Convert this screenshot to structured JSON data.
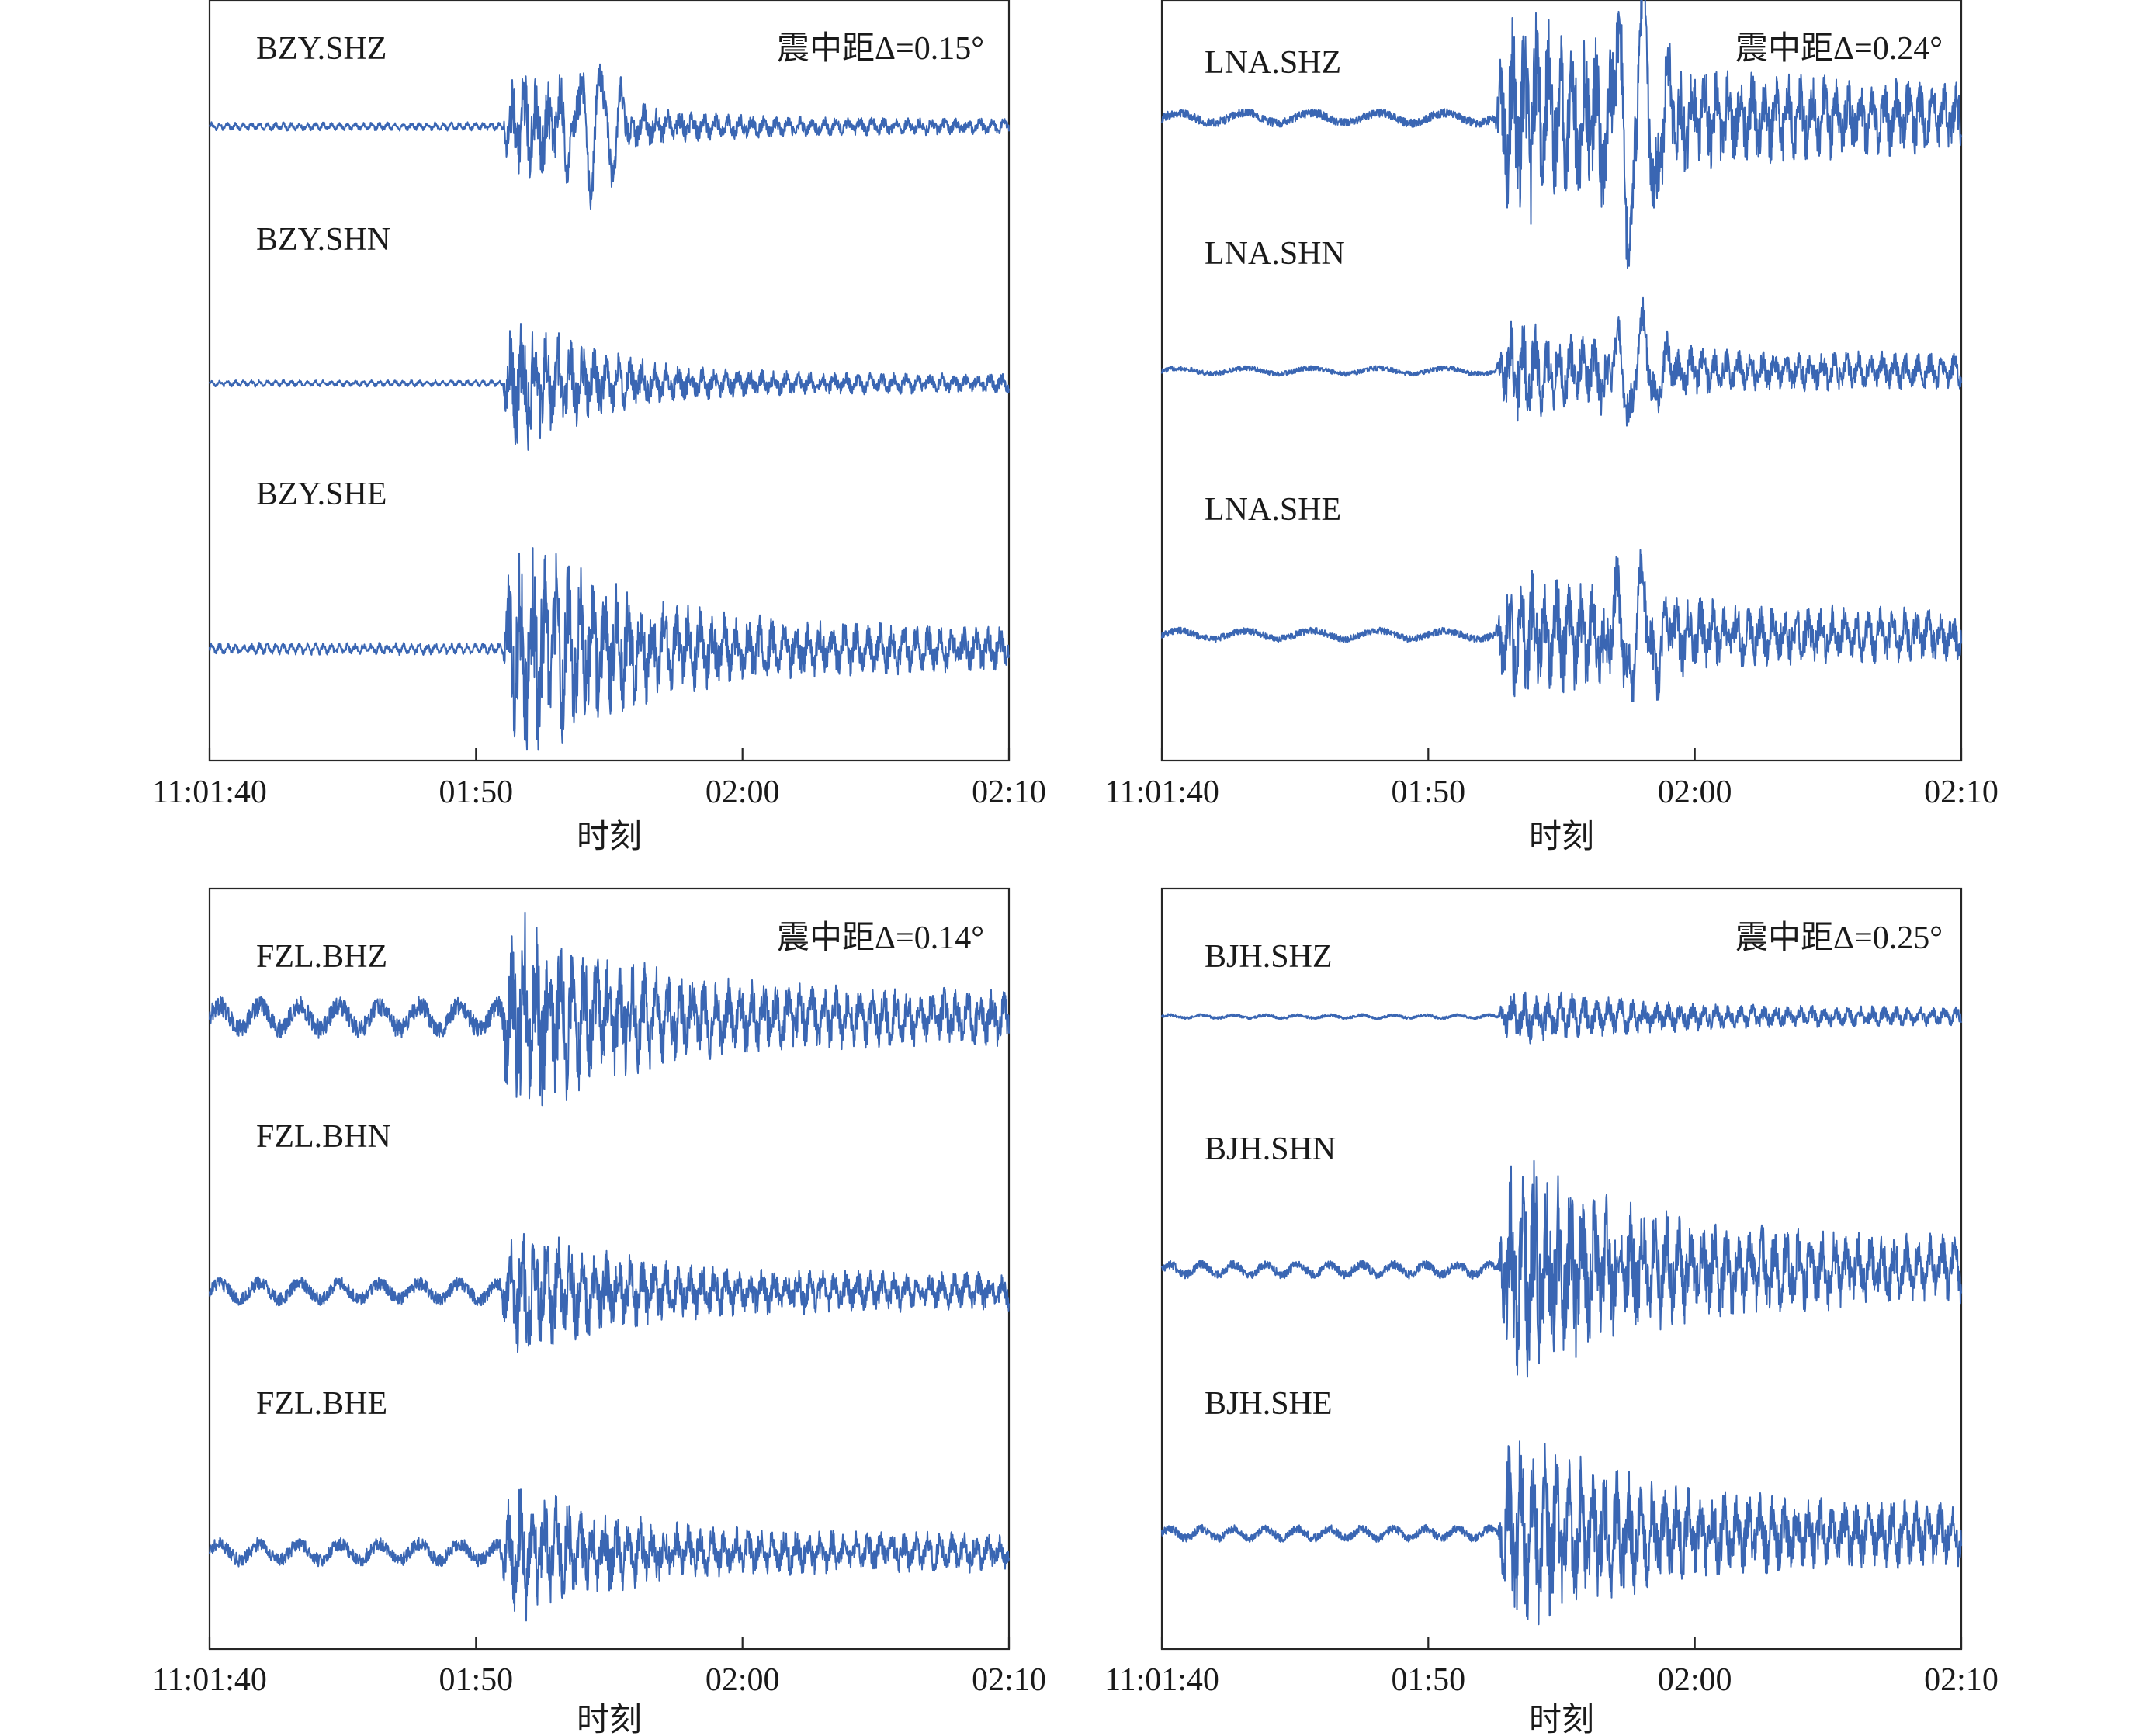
{
  "colors": {
    "trace": "#3a66b3",
    "axis": "#262626"
  },
  "chart_data": [
    {
      "type": "line",
      "station": "BZY",
      "distance_label": "震中距Δ=0.15°",
      "xlabel": "时刻",
      "xlim": [
        "11:01:40",
        "11:02:10"
      ],
      "x_ticks": [
        "11:01:40",
        "01:50",
        "02:00",
        "02:10"
      ],
      "grid": false,
      "series": [
        {
          "name": "BZY.SHZ",
          "onset_s": 11.0,
          "pre_noise": 0.06,
          "pre_period_s": 0.3,
          "peak": 1.0,
          "duration_s": 5,
          "coda": 0.12,
          "surface_amp": 0.8,
          "surface_center_s": 14.5,
          "surface_period_s": 0.8
        },
        {
          "name": "BZY.SHN",
          "onset_s": 11.0,
          "pre_noise": 0.04,
          "pre_period_s": 0.3,
          "peak": 1.0,
          "duration_s": 5,
          "coda": 0.12,
          "surface_amp": 0.0,
          "surface_center_s": 0,
          "surface_period_s": 1
        },
        {
          "name": "BZY.SHE",
          "onset_s": 11.0,
          "pre_noise": 0.05,
          "pre_period_s": 0.3,
          "peak": 1.0,
          "duration_s": 7,
          "coda": 0.18,
          "surface_amp": 0.0,
          "surface_center_s": 0,
          "surface_period_s": 1
        }
      ]
    },
    {
      "type": "line",
      "station": "LNA",
      "distance_label": "震中距Δ=0.24°",
      "xlabel": "时刻",
      "xlim": [
        "11:01:40",
        "11:02:10"
      ],
      "x_ticks": [
        "11:01:40",
        "01:50",
        "02:00",
        "02:10"
      ],
      "grid": false,
      "series": [
        {
          "name": "LNA.SHZ",
          "onset_s": 12.5,
          "pre_noise": 0.08,
          "pre_period_s": 2.5,
          "peak": 0.9,
          "duration_s": 8,
          "coda": 0.3,
          "surface_amp": 1.1,
          "surface_center_s": 17.8,
          "surface_period_s": 1.0
        },
        {
          "name": "LNA.SHN",
          "onset_s": 12.5,
          "pre_noise": 0.08,
          "pre_period_s": 2.5,
          "peak": 0.8,
          "duration_s": 6,
          "coda": 0.3,
          "surface_amp": 0.75,
          "surface_center_s": 17.8,
          "surface_period_s": 1.0
        },
        {
          "name": "LNA.SHE",
          "onset_s": 12.5,
          "pre_noise": 0.1,
          "pre_period_s": 2.5,
          "peak": 0.8,
          "duration_s": 8,
          "coda": 0.35,
          "surface_amp": 0.75,
          "surface_center_s": 17.8,
          "surface_period_s": 1.0
        }
      ]
    },
    {
      "type": "line",
      "station": "FZL",
      "distance_label": "震中距Δ=0.14°",
      "xlabel": "时刻",
      "xlim": [
        "11:01:40",
        "11:02:10"
      ],
      "x_ticks": [
        "11:01:40",
        "01:50",
        "02:00",
        "02:10"
      ],
      "grid": false,
      "series": [
        {
          "name": "FZL.BHZ",
          "onset_s": 10.9,
          "pre_noise": 0.18,
          "pre_period_s": 1.5,
          "peak": 1.0,
          "duration_s": 6,
          "coda": 0.25,
          "surface_amp": 0.0,
          "surface_center_s": 0,
          "surface_period_s": 1
        },
        {
          "name": "FZL.BHN",
          "onset_s": 10.9,
          "pre_noise": 0.18,
          "pre_period_s": 1.5,
          "peak": 0.85,
          "duration_s": 6,
          "coda": 0.25,
          "surface_amp": 0.0,
          "surface_center_s": 0,
          "surface_period_s": 1
        },
        {
          "name": "FZL.BHE",
          "onset_s": 10.9,
          "pre_noise": 0.18,
          "pre_period_s": 1.5,
          "peak": 0.85,
          "duration_s": 6,
          "coda": 0.25,
          "surface_amp": 0.0,
          "surface_center_s": 0,
          "surface_period_s": 1
        }
      ]
    },
    {
      "type": "line",
      "station": "BJH",
      "distance_label": "震中距Δ=0.25°",
      "xlabel": "时刻",
      "xlim": [
        "11:01:40",
        "11:02:10"
      ],
      "x_ticks": [
        "11:01:40",
        "01:50",
        "02:00",
        "02:10"
      ],
      "grid": false,
      "series": [
        {
          "name": "BJH.SHZ",
          "onset_s": 12.6,
          "pre_noise": 0.06,
          "pre_period_s": 1.2,
          "peak": 0.55,
          "duration_s": 8,
          "coda": 0.2,
          "surface_amp": 0.0,
          "surface_center_s": 0,
          "surface_period_s": 1
        },
        {
          "name": "BJH.SHN",
          "onset_s": 12.6,
          "pre_noise": 0.08,
          "pre_period_s": 1.2,
          "peak": 1.0,
          "duration_s": 7,
          "coda": 0.3,
          "surface_amp": 0.0,
          "surface_center_s": 0,
          "surface_period_s": 1
        },
        {
          "name": "BJH.SHE",
          "onset_s": 12.6,
          "pre_noise": 0.08,
          "pre_period_s": 1.2,
          "peak": 0.9,
          "duration_s": 7,
          "coda": 0.3,
          "surface_amp": 0.0,
          "surface_center_s": 0,
          "surface_period_s": 1
        }
      ]
    }
  ]
}
